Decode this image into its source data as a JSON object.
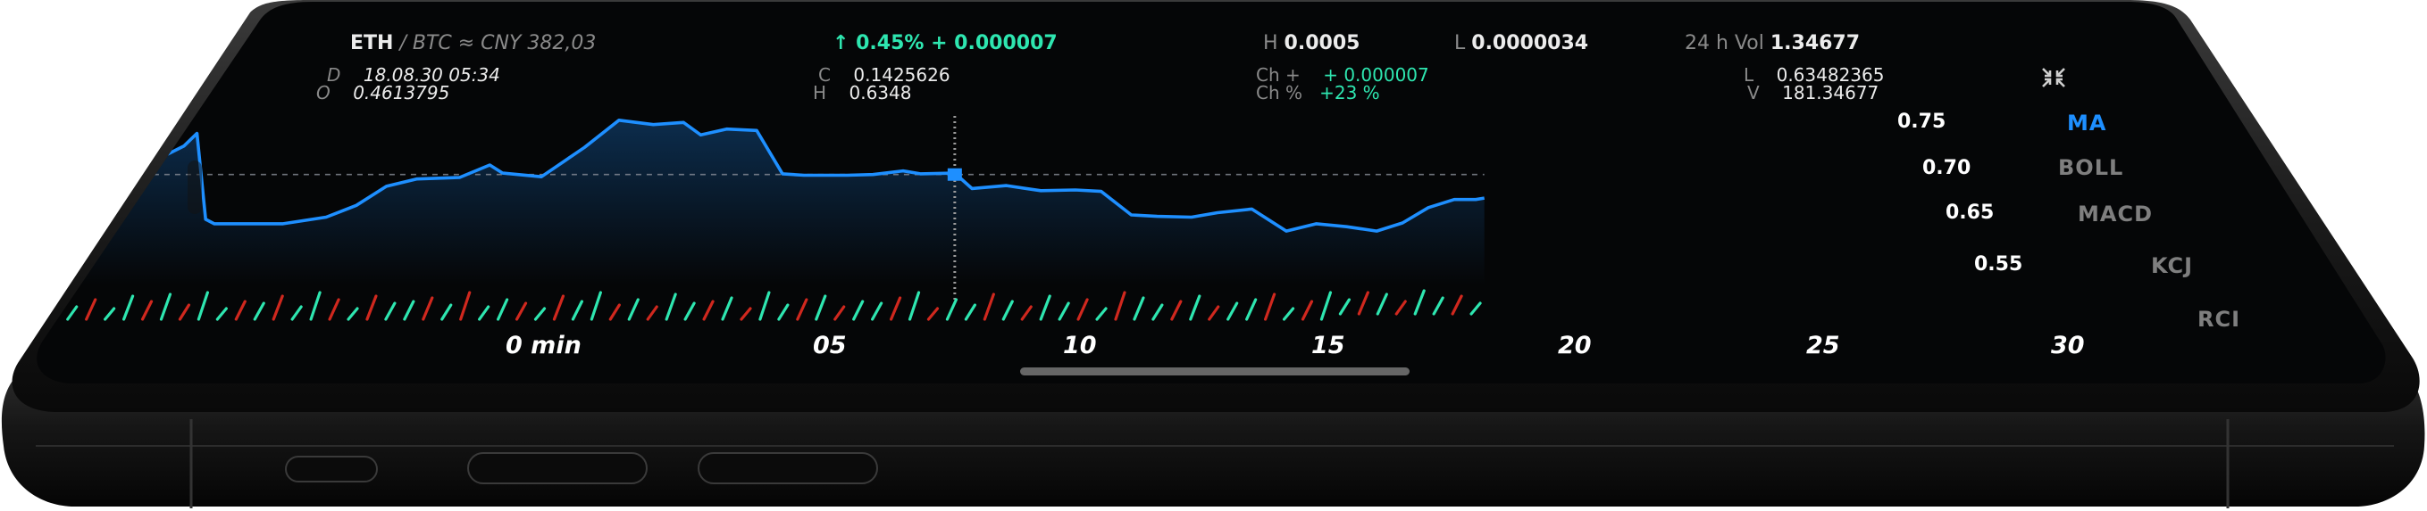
{
  "ticker": {
    "pair_base": "ETH",
    "pair_sep": " / BTC ≈ CNY 382,03",
    "change": "↑ 0.45% + 0.000007",
    "high_label": "H",
    "high_value": "0.0005",
    "low_label": "L",
    "low_value": "0.0000034",
    "vol_label": "24 h Vol",
    "vol_value": "1.34677"
  },
  "details": {
    "d_label": "D",
    "d_value": "18.08.30 05:34",
    "o_label": "O",
    "o_value": "0.4613795",
    "c_label": "C",
    "c_value": "0.1425626",
    "h_label": "H",
    "h_value": "0.6348",
    "ch_label": "Ch +",
    "ch_value": "+ 0.000007",
    "chp_label": "Ch %",
    "chp_value": "+23 %",
    "l_label": "L",
    "l_value": "0.63482365",
    "v_label": "V",
    "v_value": "181.34677"
  },
  "indicators": [
    {
      "label": "MA",
      "active": true
    },
    {
      "label": "BOLL",
      "active": false
    },
    {
      "label": "MACD",
      "active": false
    },
    {
      "label": "KCJ",
      "active": false
    },
    {
      "label": "RCI",
      "active": false
    }
  ],
  "colors": {
    "line": "#1e8fff",
    "up": "#2ee6b0",
    "down": "#d0281e",
    "screen": "#050607"
  },
  "icons": {
    "fullscreen": "collapse-arrows-icon"
  },
  "chart_data": {
    "type": "line",
    "x_ticks": [
      "0 min",
      "05",
      "10",
      "15",
      "20",
      "25",
      "30"
    ],
    "y_ticks": [
      "0.75",
      "0.70",
      "0.65",
      "0.55"
    ],
    "y_tick_values": [
      0.75,
      0.7,
      0.65,
      0.55
    ],
    "ylim": [
      0.52,
      0.78
    ],
    "xlim": [
      -4.4,
      28.5
    ],
    "reference_value": 0.671,
    "cursor_x": 16.2,
    "series": [
      {
        "values": [
          [
            -4.3,
            0.674
          ],
          [
            -3.9,
            0.674
          ],
          [
            -3.7,
            0.664
          ],
          [
            -3.3,
            0.663
          ],
          [
            -1.7,
            0.71
          ],
          [
            -1.4,
            0.727
          ],
          [
            -1.2,
            0.61
          ],
          [
            -1.0,
            0.604
          ],
          [
            0.0,
            0.604
          ],
          [
            0.6,
            0.604
          ],
          [
            1.6,
            0.613
          ],
          [
            2.3,
            0.629
          ],
          [
            3.0,
            0.655
          ],
          [
            3.7,
            0.665
          ],
          [
            4.7,
            0.667
          ],
          [
            5.4,
            0.684
          ],
          [
            5.7,
            0.673
          ],
          [
            6.6,
            0.668
          ],
          [
            7.6,
            0.708
          ],
          [
            8.4,
            0.745
          ],
          [
            9.2,
            0.739
          ],
          [
            9.9,
            0.742
          ],
          [
            10.3,
            0.725
          ],
          [
            10.9,
            0.733
          ],
          [
            11.6,
            0.731
          ],
          [
            12.2,
            0.672
          ],
          [
            12.7,
            0.67
          ],
          [
            13.7,
            0.67
          ],
          [
            14.3,
            0.671
          ],
          [
            15.0,
            0.676
          ],
          [
            15.4,
            0.672
          ],
          [
            16.2,
            0.673
          ],
          [
            16.6,
            0.652
          ],
          [
            17.4,
            0.656
          ],
          [
            18.2,
            0.649
          ],
          [
            19.0,
            0.65
          ],
          [
            19.6,
            0.648
          ],
          [
            20.3,
            0.616
          ],
          [
            20.9,
            0.614
          ],
          [
            21.7,
            0.613
          ],
          [
            22.3,
            0.619
          ],
          [
            23.1,
            0.624
          ],
          [
            23.9,
            0.594
          ],
          [
            24.6,
            0.604
          ],
          [
            25.3,
            0.6
          ],
          [
            26.0,
            0.594
          ],
          [
            26.6,
            0.605
          ],
          [
            27.2,
            0.626
          ],
          [
            27.8,
            0.637
          ],
          [
            28.3,
            0.637
          ],
          [
            28.5,
            0.639
          ]
        ]
      }
    ]
  }
}
